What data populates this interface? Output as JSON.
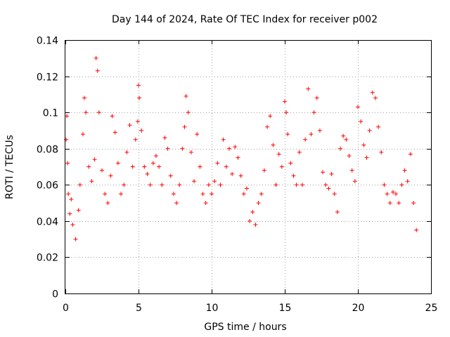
{
  "chart_data": {
    "type": "scatter",
    "title": "Day 144 of 2024, Rate Of TEC Index for receiver p002",
    "xlabel": "GPS time / hours",
    "ylabel": "ROTI / TECUs",
    "xlim": [
      0,
      25
    ],
    "ylim": [
      0,
      0.14
    ],
    "xticks": [
      0,
      5,
      10,
      15,
      20,
      25
    ],
    "xtick_labels": [
      "0",
      "5",
      "10",
      "15",
      "20",
      "25"
    ],
    "yticks": [
      0,
      0.02,
      0.04,
      0.06,
      0.08,
      0.1,
      0.12,
      0.14
    ],
    "ytick_labels": [
      "0",
      "0.02",
      "0.04",
      "0.06",
      "0.08",
      "0.1",
      "0.12",
      "0.14"
    ],
    "grid": true,
    "marker": "+",
    "color": "#ff0000",
    "series": [
      {
        "name": "ROTI",
        "x": [
          0.05,
          0.1,
          0.15,
          0.2,
          0.3,
          0.4,
          0.5,
          0.7,
          0.9,
          1.0,
          1.2,
          1.3,
          1.4,
          1.6,
          1.8,
          2.0,
          2.1,
          2.2,
          2.3,
          2.5,
          2.7,
          2.9,
          3.1,
          3.2,
          3.4,
          3.6,
          3.8,
          4.0,
          4.2,
          4.4,
          4.6,
          4.8,
          4.95,
          5.0,
          5.05,
          5.2,
          5.4,
          5.6,
          5.8,
          6.0,
          6.2,
          6.4,
          6.6,
          6.8,
          7.0,
          7.2,
          7.4,
          7.6,
          7.8,
          8.0,
          8.15,
          8.25,
          8.4,
          8.6,
          8.8,
          9.0,
          9.2,
          9.4,
          9.6,
          9.8,
          10.0,
          10.2,
          10.4,
          10.6,
          10.8,
          11.0,
          11.2,
          11.4,
          11.6,
          11.8,
          12.0,
          12.2,
          12.4,
          12.6,
          12.8,
          13.0,
          13.2,
          13.4,
          13.6,
          13.8,
          14.0,
          14.2,
          14.4,
          14.6,
          14.8,
          15.0,
          15.1,
          15.2,
          15.4,
          15.6,
          15.8,
          16.0,
          16.2,
          16.4,
          16.6,
          16.8,
          17.0,
          17.2,
          17.4,
          17.6,
          17.8,
          18.0,
          18.2,
          18.4,
          18.6,
          18.8,
          19.0,
          19.2,
          19.4,
          19.6,
          19.8,
          20.0,
          20.2,
          20.4,
          20.6,
          20.8,
          21.0,
          21.2,
          21.4,
          21.6,
          21.8,
          22.0,
          22.2,
          22.4,
          22.6,
          22.8,
          23.0,
          23.2,
          23.4,
          23.6,
          23.8,
          24.0
        ],
        "y": [
          0.085,
          0.098,
          0.072,
          0.055,
          0.044,
          0.052,
          0.038,
          0.03,
          0.046,
          0.06,
          0.088,
          0.108,
          0.1,
          0.07,
          0.062,
          0.074,
          0.13,
          0.123,
          0.1,
          0.068,
          0.055,
          0.05,
          0.065,
          0.098,
          0.089,
          0.072,
          0.055,
          0.06,
          0.078,
          0.093,
          0.07,
          0.085,
          0.095,
          0.115,
          0.108,
          0.09,
          0.07,
          0.066,
          0.06,
          0.072,
          0.076,
          0.07,
          0.06,
          0.086,
          0.08,
          0.065,
          0.055,
          0.05,
          0.06,
          0.08,
          0.092,
          0.109,
          0.1,
          0.078,
          0.062,
          0.088,
          0.07,
          0.055,
          0.05,
          0.06,
          0.055,
          0.062,
          0.072,
          0.06,
          0.085,
          0.07,
          0.08,
          0.066,
          0.081,
          0.075,
          0.065,
          0.055,
          0.058,
          0.04,
          0.045,
          0.038,
          0.05,
          0.055,
          0.068,
          0.092,
          0.098,
          0.082,
          0.06,
          0.077,
          0.07,
          0.106,
          0.1,
          0.088,
          0.072,
          0.065,
          0.06,
          0.078,
          0.06,
          0.085,
          0.113,
          0.088,
          0.1,
          0.108,
          0.09,
          0.067,
          0.06,
          0.058,
          0.066,
          0.055,
          0.045,
          0.08,
          0.087,
          0.085,
          0.076,
          0.068,
          0.062,
          0.103,
          0.095,
          0.082,
          0.075,
          0.09,
          0.111,
          0.108,
          0.092,
          0.078,
          0.06,
          0.055,
          0.05,
          0.056,
          0.055,
          0.05,
          0.06,
          0.068,
          0.062,
          0.077,
          0.05,
          0.035
        ]
      }
    ]
  }
}
